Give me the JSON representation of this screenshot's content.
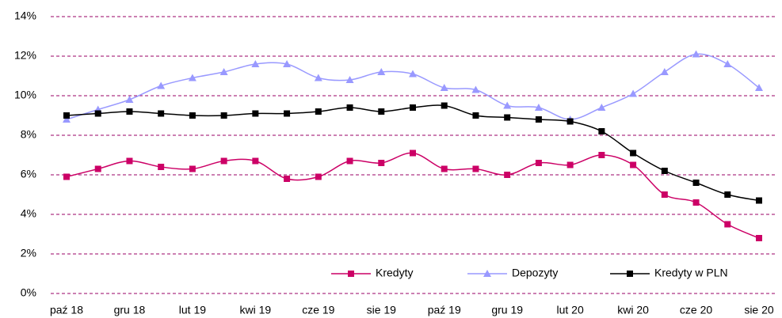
{
  "chart_data": {
    "type": "line",
    "categories": [
      "paź 18",
      null,
      "gru 18",
      null,
      "lut 19",
      null,
      "kwi 19",
      null,
      "cze 19",
      null,
      "sie 19",
      null,
      "paź 19",
      null,
      "gru 19",
      null,
      "lut 20",
      null,
      "kwi 20",
      null,
      "cze 20",
      null,
      "sie 20"
    ],
    "series": [
      {
        "name": "Kredyty",
        "color": "#cc0066",
        "marker": "square",
        "values": [
          5.9,
          6.3,
          6.7,
          6.4,
          6.3,
          6.7,
          6.7,
          5.8,
          5.9,
          6.7,
          6.6,
          7.1,
          6.3,
          6.3,
          6.0,
          6.6,
          6.5,
          7.0,
          6.5,
          5.0,
          4.6,
          3.5,
          2.8
        ]
      },
      {
        "name": "Depozyty",
        "color": "#9999ff",
        "marker": "triangle",
        "values": [
          8.8,
          9.3,
          9.8,
          10.5,
          10.9,
          11.2,
          11.6,
          11.6,
          10.9,
          10.8,
          11.2,
          11.1,
          10.4,
          10.3,
          9.5,
          9.4,
          8.8,
          9.4,
          10.1,
          11.2,
          12.1,
          11.6,
          10.4
        ]
      },
      {
        "name": "Kredyty w PLN",
        "color": "#000000",
        "marker": "square",
        "values": [
          9.0,
          9.1,
          9.2,
          9.1,
          9.0,
          9.0,
          9.1,
          9.1,
          9.2,
          9.4,
          9.2,
          9.4,
          9.5,
          9.0,
          8.9,
          8.8,
          8.7,
          8.2,
          7.1,
          6.2,
          5.6,
          5.0,
          4.7
        ]
      }
    ],
    "ylim": [
      0,
      14
    ],
    "yticks": [
      {
        "value": 0,
        "label": "0%"
      },
      {
        "value": 2,
        "label": "2%"
      },
      {
        "value": 4,
        "label": "4%"
      },
      {
        "value": 6,
        "label": "6%"
      },
      {
        "value": 8,
        "label": "8%"
      },
      {
        "value": 10,
        "label": "10%"
      },
      {
        "value": 12,
        "label": "12%"
      },
      {
        "value": 14,
        "label": "14%"
      }
    ],
    "grid": true,
    "smooth": true,
    "legend": "bottom"
  }
}
